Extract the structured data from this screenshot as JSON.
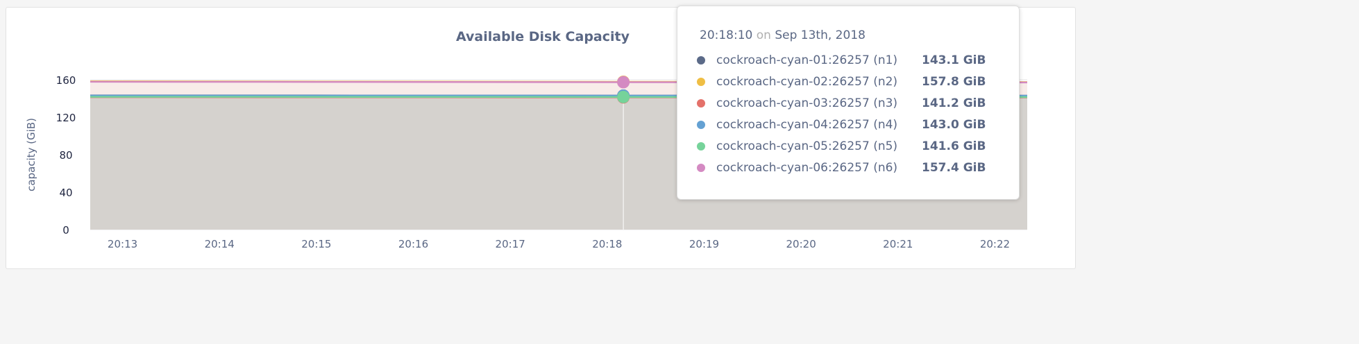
{
  "chart_data": {
    "type": "area",
    "title": "Available Disk Capacity",
    "ylabel": "capacity (GiB)",
    "xlabel": "",
    "ylim": [
      0,
      160
    ],
    "yticks": [
      "0",
      "40",
      "80",
      "120",
      "160"
    ],
    "xticks": [
      "20:13",
      "20:14",
      "20:15",
      "20:16",
      "20:17",
      "20:18",
      "20:19",
      "20:20",
      "20:21",
      "20:22"
    ],
    "xlim": [
      "20:12:40",
      "20:22:20"
    ],
    "grid": true,
    "fill_colors": {
      "upper": "#f8ece9",
      "lower": "#d5d2ce"
    },
    "x": [
      "20:12:40",
      "20:15:00",
      "20:18:10",
      "20:22:20"
    ],
    "series": [
      {
        "name": "cockroach-cyan-01:26257 (n1)",
        "color": "#5b6a88",
        "values": [
          143.2,
          143.2,
          143.1,
          143.0
        ]
      },
      {
        "name": "cockroach-cyan-02:26257 (n2)",
        "color": "#efbe44",
        "values": [
          158.3,
          158.1,
          157.8,
          157.5
        ]
      },
      {
        "name": "cockroach-cyan-03:26257 (n3)",
        "color": "#e4716a",
        "values": [
          141.4,
          141.3,
          141.2,
          141.1
        ]
      },
      {
        "name": "cockroach-cyan-04:26257 (n4)",
        "color": "#64a1d3",
        "values": [
          143.1,
          143.1,
          143.0,
          142.9
        ]
      },
      {
        "name": "cockroach-cyan-05:26257 (n5)",
        "color": "#76d39a",
        "values": [
          141.8,
          141.7,
          141.6,
          141.5
        ]
      },
      {
        "name": "cockroach-cyan-06:26257 (n6)",
        "color": "#d48ac2",
        "values": [
          157.9,
          157.7,
          157.4,
          157.1
        ]
      }
    ],
    "hover_x": "20:18:10"
  },
  "tooltip": {
    "time": "20:18:10",
    "on": "on",
    "date": "Sep 13th, 2018",
    "rows": [
      {
        "label": "cockroach-cyan-01:26257 (n1)",
        "value": "143.1 GiB"
      },
      {
        "label": "cockroach-cyan-02:26257 (n2)",
        "value": "157.8 GiB"
      },
      {
        "label": "cockroach-cyan-03:26257 (n3)",
        "value": "141.2 GiB"
      },
      {
        "label": "cockroach-cyan-04:26257 (n4)",
        "value": "143.0 GiB"
      },
      {
        "label": "cockroach-cyan-05:26257 (n5)",
        "value": "141.6 GiB"
      },
      {
        "label": "cockroach-cyan-06:26257 (n6)",
        "value": "157.4 GiB"
      }
    ]
  }
}
